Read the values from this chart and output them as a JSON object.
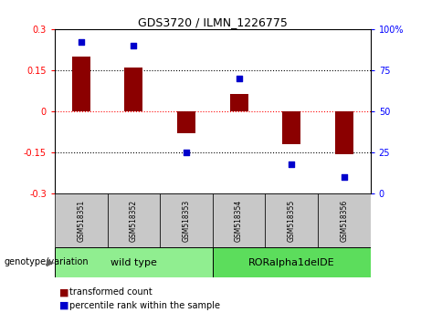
{
  "title": "GDS3720 / ILMN_1226775",
  "samples": [
    "GSM518351",
    "GSM518352",
    "GSM518353",
    "GSM518354",
    "GSM518355",
    "GSM518356"
  ],
  "bar_values": [
    0.2,
    0.16,
    -0.08,
    0.065,
    -0.12,
    -0.155
  ],
  "percentile_values": [
    92,
    90,
    25,
    70,
    18,
    10
  ],
  "bar_color": "#8B0000",
  "dot_color": "#0000CC",
  "ylim_left": [
    -0.3,
    0.3
  ],
  "ylim_right": [
    0,
    100
  ],
  "yticks_left": [
    -0.3,
    -0.15,
    0,
    0.15,
    0.3
  ],
  "yticks_right": [
    0,
    25,
    50,
    75,
    100
  ],
  "group1_label": "wild type",
  "group2_label": "RORalpha1delDE",
  "group1_color": "#90EE90",
  "group2_color": "#5CDD5C",
  "genotype_label": "genotype/variation",
  "legend1": "transformed count",
  "legend2": "percentile rank within the sample",
  "group1_indices": [
    0,
    1,
    2
  ],
  "group2_indices": [
    3,
    4,
    5
  ],
  "sample_box_color": "#C8C8C8",
  "bar_width": 0.35
}
